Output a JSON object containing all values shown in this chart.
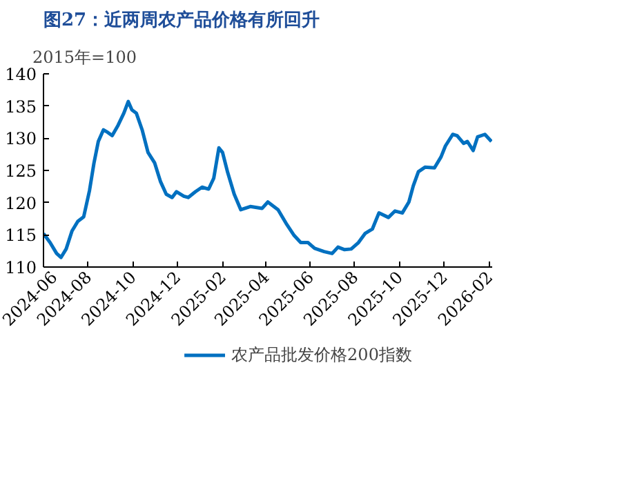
{
  "chart_data": {
    "type": "line",
    "title": "图27：近两周农产品价格有所回升",
    "ylabel": "2015年=100",
    "x": [
      "2024-06-01",
      "2024-06-10",
      "2024-06-19",
      "2024-06-25",
      "2024-07-02",
      "2024-07-10",
      "2024-07-18",
      "2024-07-26",
      "2024-08-03",
      "2024-08-09",
      "2024-08-15",
      "2024-08-22",
      "2024-08-28",
      "2024-09-03",
      "2024-09-11",
      "2024-09-19",
      "2024-09-25",
      "2024-09-30",
      "2024-10-06",
      "2024-10-14",
      "2024-10-22",
      "2024-10-31",
      "2024-11-08",
      "2024-11-16",
      "2024-11-24",
      "2024-11-30",
      "2024-12-10",
      "2024-12-16",
      "2024-12-26",
      "2025-01-04",
      "2025-01-13",
      "2025-01-20",
      "2025-01-27",
      "2025-02-01",
      "2025-02-08",
      "2025-02-17",
      "2025-02-26",
      "2025-03-11",
      "2025-03-27",
      "2025-04-04",
      "2025-04-18",
      "2025-04-30",
      "2025-05-10",
      "2025-05-19",
      "2025-05-29",
      "2025-06-07",
      "2025-06-20",
      "2025-07-01",
      "2025-07-09",
      "2025-07-18",
      "2025-07-27",
      "2025-08-06",
      "2025-08-15",
      "2025-08-25",
      "2025-09-03",
      "2025-09-16",
      "2025-09-25",
      "2025-10-05",
      "2025-10-14",
      "2025-10-20",
      "2025-10-27",
      "2025-11-05",
      "2025-11-18",
      "2025-11-27",
      "2025-12-03",
      "2025-12-13",
      "2025-12-19",
      "2025-12-28",
      "2026-01-02",
      "2026-01-10",
      "2026-01-16",
      "2026-01-26",
      "2026-02-04"
    ],
    "series": [
      {
        "name": "农产品批发价格200指数",
        "color": "#0070c0",
        "values": [
          115.2,
          113.8,
          112.1,
          111.5,
          112.8,
          115.6,
          117.1,
          117.8,
          121.9,
          126.1,
          129.5,
          131.3,
          130.9,
          130.4,
          132.0,
          133.9,
          135.7,
          134.4,
          133.9,
          131.3,
          127.8,
          126.2,
          123.3,
          121.3,
          120.8,
          121.7,
          121.0,
          120.8,
          121.7,
          122.4,
          122.1,
          123.8,
          128.5,
          127.8,
          124.7,
          121.3,
          118.9,
          119.4,
          119.1,
          120.1,
          118.9,
          116.6,
          114.9,
          113.8,
          113.8,
          112.9,
          112.4,
          112.1,
          113.1,
          112.7,
          112.8,
          113.8,
          115.2,
          115.9,
          118.4,
          117.7,
          118.7,
          118.4,
          120.1,
          122.6,
          124.8,
          125.5,
          125.4,
          127.1,
          128.8,
          130.6,
          130.4,
          129.2,
          129.5,
          128.1,
          130.2,
          130.6,
          129.5
        ]
      }
    ],
    "xlim": [
      "2024-06-01",
      "2026-02-05"
    ],
    "xticks": [
      "2024-06",
      "2024-08",
      "2024-10",
      "2024-12",
      "2025-02",
      "2025-04",
      "2025-06",
      "2025-08",
      "2025-10",
      "2025-12",
      "2026-02"
    ],
    "ylim": [
      110,
      140
    ],
    "yticks": [
      110,
      115,
      120,
      125,
      130,
      135,
      140
    ],
    "grid": false,
    "legend": "bottom",
    "line_style": "solid",
    "marker": "none"
  }
}
